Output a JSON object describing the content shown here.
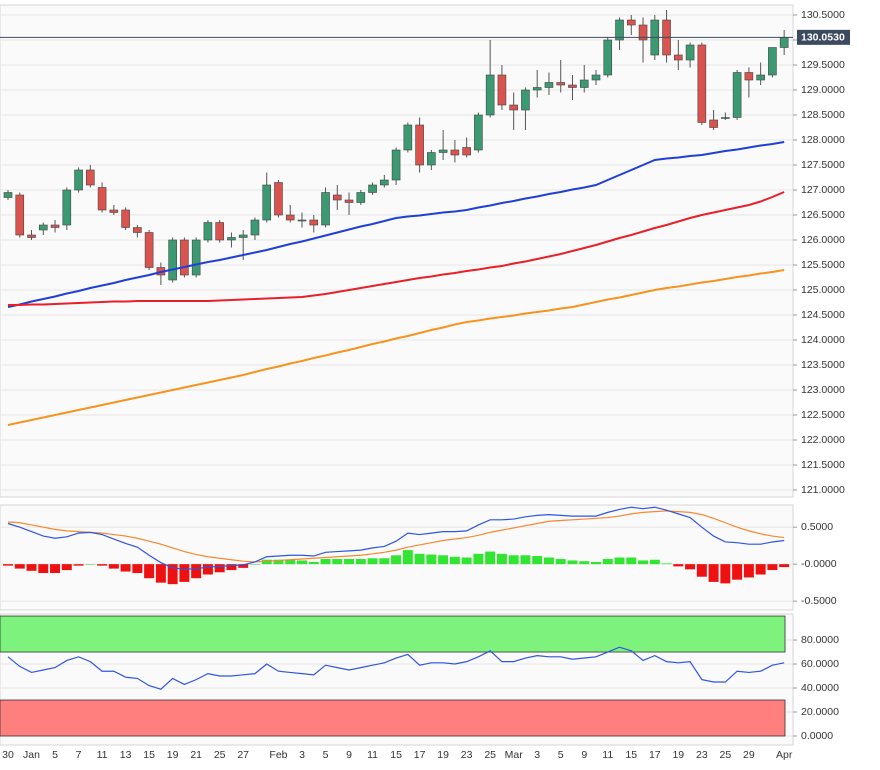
{
  "chart_data": [
    {
      "type": "candlestick",
      "categories": [
        "30",
        null,
        "Jan",
        null,
        "5",
        null,
        "7",
        null,
        "11",
        null,
        "13",
        null,
        "15",
        null,
        "19",
        null,
        "21",
        null,
        "25",
        null,
        "27",
        null,
        null,
        "Feb",
        null,
        "3",
        null,
        "5",
        null,
        "9",
        null,
        "11",
        null,
        "15",
        null,
        "17",
        null,
        "19",
        null,
        "23",
        null,
        "25",
        null,
        "Mar",
        null,
        "3",
        null,
        "5",
        null,
        "9",
        null,
        "11",
        null,
        "15",
        null,
        "17",
        null,
        "19",
        null,
        "23",
        null,
        "25",
        null,
        "29",
        null,
        null,
        "Apr"
      ],
      "open": [
        126.85,
        126.9,
        126.1,
        126.2,
        126.3,
        126.3,
        127.0,
        127.4,
        127.05,
        126.6,
        126.6,
        126.25,
        126.15,
        125.45,
        125.2,
        126.0,
        125.3,
        126.0,
        126.35,
        126.0,
        126.05,
        126.1,
        126.4,
        127.15,
        126.5,
        126.4,
        126.4,
        126.3,
        126.9,
        126.8,
        126.75,
        126.95,
        127.1,
        127.2,
        127.8,
        128.3,
        127.5,
        127.75,
        127.8,
        127.85,
        127.8,
        128.5,
        129.3,
        128.7,
        128.6,
        129.0,
        129.05,
        129.15,
        129.1,
        129.05,
        129.2,
        129.3,
        130.0,
        130.4,
        130.3,
        129.7,
        130.4,
        129.7,
        129.6,
        129.9,
        128.4,
        128.45,
        128.45,
        129.35,
        129.2,
        129.3,
        129.85
      ],
      "high": [
        127.0,
        126.95,
        126.2,
        126.35,
        126.4,
        127.05,
        127.45,
        127.5,
        127.15,
        126.7,
        126.65,
        126.3,
        126.2,
        125.55,
        126.05,
        126.05,
        126.05,
        126.4,
        126.4,
        126.15,
        126.2,
        126.45,
        127.35,
        127.2,
        126.7,
        126.55,
        126.5,
        127.05,
        127.1,
        126.95,
        127.0,
        127.15,
        127.3,
        127.85,
        128.35,
        128.45,
        127.8,
        128.2,
        128.0,
        128.05,
        128.55,
        130.0,
        129.5,
        128.95,
        129.05,
        129.4,
        129.35,
        129.6,
        129.3,
        129.5,
        129.4,
        130.05,
        130.45,
        130.5,
        130.45,
        130.5,
        130.6,
        130.0,
        129.95,
        129.95,
        128.6,
        128.55,
        129.4,
        129.45,
        129.55,
        129.85,
        130.2
      ],
      "low": [
        126.8,
        126.05,
        126.0,
        126.1,
        126.15,
        126.2,
        126.95,
        127.05,
        126.55,
        126.5,
        126.2,
        126.05,
        125.4,
        125.1,
        125.15,
        125.25,
        125.25,
        125.95,
        125.95,
        125.85,
        125.6,
        126.0,
        126.35,
        126.45,
        126.35,
        126.25,
        126.15,
        126.25,
        126.6,
        126.5,
        126.7,
        126.9,
        127.05,
        127.1,
        127.75,
        127.35,
        127.4,
        127.6,
        127.55,
        127.65,
        127.75,
        128.45,
        128.6,
        128.2,
        128.2,
        128.85,
        128.9,
        128.95,
        128.8,
        128.95,
        129.1,
        129.25,
        129.8,
        130.1,
        129.55,
        129.6,
        129.55,
        129.4,
        129.45,
        128.3,
        128.2,
        128.4,
        128.4,
        128.85,
        129.1,
        129.25,
        129.7
      ],
      "close": [
        126.95,
        126.1,
        126.05,
        126.3,
        126.25,
        127.0,
        127.4,
        127.1,
        126.6,
        126.55,
        126.25,
        126.15,
        125.45,
        125.3,
        126.0,
        125.3,
        126.0,
        126.35,
        126.0,
        126.05,
        126.1,
        126.4,
        127.1,
        126.5,
        126.4,
        126.4,
        126.3,
        126.95,
        126.8,
        126.75,
        126.95,
        127.1,
        127.2,
        127.8,
        128.3,
        127.5,
        127.75,
        127.8,
        127.7,
        127.7,
        128.5,
        129.3,
        128.7,
        128.6,
        129.0,
        129.05,
        129.15,
        129.1,
        129.05,
        129.2,
        129.3,
        130.0,
        130.4,
        130.3,
        130.0,
        130.4,
        129.7,
        129.6,
        129.9,
        128.35,
        128.25,
        128.45,
        129.35,
        129.2,
        129.3,
        129.85,
        130.05
      ],
      "up_color": "#3c9a72",
      "down_color": "#d9534f",
      "moving_averages": [
        {
          "color": "#1f3fd6",
          "values": [
            124.66,
            124.71,
            124.77,
            124.82,
            124.87,
            124.93,
            124.98,
            125.04,
            125.09,
            125.14,
            125.2,
            125.25,
            125.3,
            125.36,
            125.41,
            125.46,
            125.51,
            125.56,
            125.6,
            125.65,
            125.7,
            125.75,
            125.8,
            125.86,
            125.92,
            125.97,
            126.03,
            126.09,
            126.15,
            126.21,
            126.27,
            126.32,
            126.38,
            126.44,
            126.47,
            126.49,
            126.52,
            126.55,
            126.57,
            126.6,
            126.65,
            126.69,
            126.74,
            126.78,
            126.83,
            126.87,
            126.92,
            126.96,
            127.01,
            127.05,
            127.1,
            127.2,
            127.3,
            127.4,
            127.5,
            127.6,
            127.63,
            127.65,
            127.68,
            127.7,
            127.74,
            127.78,
            127.81,
            127.85,
            127.89,
            127.92,
            127.96
          ]
        },
        {
          "color": "#e8202a",
          "values": [
            124.7,
            124.7,
            124.71,
            124.71,
            124.72,
            124.73,
            124.74,
            124.75,
            124.76,
            124.77,
            124.77,
            124.78,
            124.78,
            124.78,
            124.78,
            124.78,
            124.78,
            124.78,
            124.79,
            124.8,
            124.81,
            124.82,
            124.83,
            124.84,
            124.85,
            124.86,
            124.89,
            124.92,
            124.96,
            125.0,
            125.04,
            125.08,
            125.12,
            125.16,
            125.2,
            125.24,
            125.27,
            125.31,
            125.34,
            125.38,
            125.41,
            125.45,
            125.48,
            125.53,
            125.57,
            125.62,
            125.67,
            125.72,
            125.78,
            125.84,
            125.9,
            125.97,
            126.04,
            126.1,
            126.17,
            126.24,
            126.3,
            126.37,
            126.44,
            126.5,
            126.55,
            126.6,
            126.65,
            126.7,
            126.77,
            126.86,
            126.96
          ]
        },
        {
          "color": "#f7931e",
          "values": [
            122.3,
            122.35,
            122.4,
            122.45,
            122.5,
            122.55,
            122.6,
            122.65,
            122.7,
            122.75,
            122.8,
            122.85,
            122.9,
            122.95,
            123.0,
            123.05,
            123.1,
            123.15,
            123.2,
            123.25,
            123.3,
            123.36,
            123.42,
            123.47,
            123.53,
            123.58,
            123.64,
            123.69,
            123.75,
            123.8,
            123.86,
            123.92,
            123.97,
            124.03,
            124.08,
            124.14,
            124.2,
            124.25,
            124.31,
            124.36,
            124.39,
            124.43,
            124.46,
            124.49,
            124.53,
            124.56,
            124.59,
            124.63,
            124.66,
            124.71,
            124.76,
            124.81,
            124.85,
            124.9,
            124.95,
            125.0,
            125.04,
            125.07,
            125.11,
            125.15,
            125.18,
            125.22,
            125.26,
            125.29,
            125.33,
            125.36,
            125.4
          ]
        }
      ],
      "last_price": {
        "value": 130.053,
        "label": "130.0530"
      },
      "last_price_color": "#3b4a5e",
      "ylim": [
        120.86,
        130.7
      ],
      "yticks": [
        {
          "value": 130.5,
          "label": "130.5000"
        },
        {
          "value": 130,
          "label": "130.0000"
        },
        {
          "value": 129.5,
          "label": "129.5000"
        },
        {
          "value": 129,
          "label": "129.0000"
        },
        {
          "value": 128.5,
          "label": "128.5000"
        },
        {
          "value": 128,
          "label": "128.0000"
        },
        {
          "value": 127.5,
          "label": "127.5000"
        },
        {
          "value": 127,
          "label": "127.0000"
        },
        {
          "value": 126.5,
          "label": "126.5000"
        },
        {
          "value": 126,
          "label": "126.0000"
        },
        {
          "value": 125.5,
          "label": "125.5000"
        },
        {
          "value": 125,
          "label": "125.0000"
        },
        {
          "value": 124.5,
          "label": "124.5000"
        },
        {
          "value": 124,
          "label": "124.0000"
        },
        {
          "value": 123.5,
          "label": "123.5000"
        },
        {
          "value": 123,
          "label": "123.0000"
        },
        {
          "value": 122.5,
          "label": "122.5000"
        },
        {
          "value": 122,
          "label": "122.0000"
        },
        {
          "value": 121.5,
          "label": "121.5000"
        },
        {
          "value": 121,
          "label": "121.0000"
        }
      ],
      "grid": true
    },
    {
      "type": "macd",
      "macd": {
        "color": "#2f55e0",
        "values": [
          0.55,
          0.5,
          0.44,
          0.38,
          0.35,
          0.37,
          0.42,
          0.43,
          0.4,
          0.34,
          0.28,
          0.23,
          0.12,
          0.02,
          -0.05,
          -0.07,
          -0.06,
          -0.04,
          -0.03,
          -0.02,
          -0.01,
          0.03,
          0.1,
          0.11,
          0.12,
          0.12,
          0.11,
          0.16,
          0.17,
          0.18,
          0.19,
          0.22,
          0.24,
          0.31,
          0.42,
          0.4,
          0.42,
          0.44,
          0.44,
          0.45,
          0.53,
          0.6,
          0.6,
          0.61,
          0.64,
          0.66,
          0.67,
          0.66,
          0.65,
          0.65,
          0.65,
          0.7,
          0.74,
          0.77,
          0.75,
          0.77,
          0.73,
          0.68,
          0.63,
          0.5,
          0.38,
          0.3,
          0.29,
          0.27,
          0.27,
          0.3,
          0.32
        ]
      },
      "signal": {
        "color": "#f7882f",
        "values": [
          0.57,
          0.56,
          0.53,
          0.5,
          0.47,
          0.45,
          0.44,
          0.43,
          0.42,
          0.4,
          0.38,
          0.35,
          0.31,
          0.27,
          0.22,
          0.17,
          0.13,
          0.1,
          0.08,
          0.06,
          0.04,
          0.03,
          0.04,
          0.05,
          0.06,
          0.07,
          0.08,
          0.09,
          0.1,
          0.11,
          0.12,
          0.14,
          0.16,
          0.19,
          0.23,
          0.26,
          0.29,
          0.32,
          0.34,
          0.36,
          0.39,
          0.43,
          0.46,
          0.49,
          0.52,
          0.55,
          0.58,
          0.59,
          0.6,
          0.61,
          0.62,
          0.63,
          0.65,
          0.68,
          0.7,
          0.71,
          0.72,
          0.71,
          0.7,
          0.67,
          0.62,
          0.56,
          0.5,
          0.45,
          0.41,
          0.38,
          0.36
        ]
      },
      "histogram": {
        "up_color": "#33e533",
        "down_color": "#ee1111",
        "values": [
          -0.02,
          -0.06,
          -0.09,
          -0.12,
          -0.12,
          -0.08,
          -0.02,
          0,
          -0.02,
          -0.06,
          -0.1,
          -0.12,
          -0.19,
          -0.25,
          -0.27,
          -0.24,
          -0.19,
          -0.14,
          -0.11,
          -0.08,
          -0.05,
          0,
          0.06,
          0.06,
          0.06,
          0.05,
          0.03,
          0.07,
          0.07,
          0.07,
          0.07,
          0.08,
          0.08,
          0.12,
          0.19,
          0.14,
          0.13,
          0.12,
          0.1,
          0.09,
          0.14,
          0.17,
          0.14,
          0.12,
          0.12,
          0.11,
          0.09,
          0.07,
          0.05,
          0.04,
          0.03,
          0.07,
          0.09,
          0.09,
          0.05,
          0.06,
          0.01,
          -0.03,
          -0.07,
          -0.17,
          -0.24,
          -0.26,
          -0.21,
          -0.18,
          -0.14,
          -0.08,
          -0.04
        ]
      },
      "ylim": [
        -0.62,
        0.8
      ],
      "yticks": [
        {
          "value": 0.5,
          "label": "0.5000"
        },
        {
          "value": 0,
          "label": "-0.0000"
        },
        {
          "value": -0.5,
          "label": "-0.5000"
        }
      ],
      "grid": true
    },
    {
      "type": "rsi",
      "values": [
        66,
        58,
        53,
        55,
        57,
        63,
        66,
        62,
        54,
        54,
        49,
        48,
        42,
        39,
        48,
        43,
        47,
        52,
        50,
        50,
        51,
        52,
        60,
        54,
        53,
        52,
        51,
        59,
        57,
        55,
        57,
        59,
        61,
        65,
        68,
        59,
        61,
        61,
        60,
        62,
        66,
        71,
        62,
        62,
        65,
        67,
        66,
        66,
        64,
        65,
        66,
        70,
        74,
        71,
        63,
        67,
        62,
        61,
        62,
        47,
        45,
        45,
        54,
        53,
        54,
        59,
        61
      ],
      "color": "#2f55e0",
      "overbought": {
        "range": [
          70,
          100
        ],
        "color": "#7df27d"
      },
      "oversold": {
        "range": [
          0,
          30
        ],
        "color": "#ff7f7f"
      },
      "ylim": [
        -7.5,
        101.7
      ],
      "yticks": [
        {
          "value": 80,
          "label": "80.0000"
        },
        {
          "value": 60,
          "label": "60.0000"
        },
        {
          "value": 40,
          "label": "40.0000"
        },
        {
          "value": 20,
          "label": "20.0000"
        },
        {
          "value": 0,
          "label": "0.0000"
        }
      ],
      "grid": true
    }
  ]
}
